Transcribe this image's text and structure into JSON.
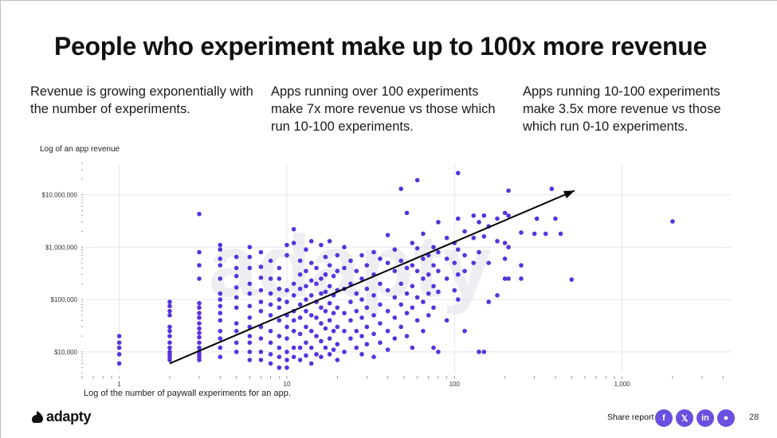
{
  "title": "People who experiment make up to 100x more revenue",
  "columns": [
    "Revenue is growing exponentially with the number of experiments.",
    "Apps running over 100 experiments make 7x more revenue vs those which run 10-100 experiments.",
    "Apps running 10-100 experiments make 3.5x more revenue vs those which run 0-10 experiments."
  ],
  "watermark": "adapty",
  "footer": {
    "brand": "adapty",
    "share_label": "Share report",
    "page_number": "28",
    "social_icons": [
      {
        "name": "facebook-icon",
        "glyph": "f"
      },
      {
        "name": "x-icon",
        "glyph": "𝕏"
      },
      {
        "name": "linkedin-icon",
        "glyph": "in"
      },
      {
        "name": "reddit-icon",
        "glyph": "●"
      }
    ]
  },
  "colors": {
    "points": "#5533dd",
    "arrow": "#000000",
    "grid": "#e6e4ef",
    "brand": "#6a4fe0"
  },
  "chart_data": {
    "type": "scatter",
    "title": "",
    "xlabel": "Log of the number of paywall experiments for an app.",
    "ylabel": "Log of an app revenue",
    "x_scale": "log",
    "y_scale": "log",
    "xlim": [
      0.6,
      4500
    ],
    "ylim": [
      4000,
      40000000
    ],
    "x_ticks": [
      {
        "value": 1,
        "label": "1"
      },
      {
        "value": 10,
        "label": "10"
      },
      {
        "value": 100,
        "label": "100"
      },
      {
        "value": 1000,
        "label": "1,000"
      }
    ],
    "y_ticks": [
      {
        "value": 10000,
        "label": "$10,000"
      },
      {
        "value": 100000,
        "label": "$100,000"
      },
      {
        "value": 1000000,
        "label": "$1,000,000"
      },
      {
        "value": 10000000,
        "label": "$10,000,000"
      }
    ],
    "trend_arrow": {
      "from": [
        2,
        6000
      ],
      "to": [
        520,
        12000000
      ]
    },
    "points": [
      [
        1,
        20000
      ],
      [
        1,
        15000
      ],
      [
        1,
        12000
      ],
      [
        1,
        9000
      ],
      [
        1,
        6000
      ],
      [
        2,
        90000
      ],
      [
        2,
        75000
      ],
      [
        2,
        60000
      ],
      [
        2,
        50000
      ],
      [
        2,
        30000
      ],
      [
        2,
        25000
      ],
      [
        2,
        20000
      ],
      [
        2,
        15000
      ],
      [
        2,
        12000
      ],
      [
        2,
        10000
      ],
      [
        2,
        9000
      ],
      [
        2,
        8000
      ],
      [
        2,
        7000
      ],
      [
        3,
        4300000
      ],
      [
        3,
        800000
      ],
      [
        3,
        450000
      ],
      [
        3,
        250000
      ],
      [
        3,
        85000
      ],
      [
        3,
        70000
      ],
      [
        3,
        55000
      ],
      [
        3,
        45000
      ],
      [
        3,
        35000
      ],
      [
        3,
        28000
      ],
      [
        3,
        23000
      ],
      [
        3,
        19000
      ],
      [
        3,
        15000
      ],
      [
        3,
        12000
      ],
      [
        3,
        10000
      ],
      [
        3,
        9000
      ],
      [
        3,
        8000
      ],
      [
        3,
        7000
      ],
      [
        4,
        1100000
      ],
      [
        4,
        900000
      ],
      [
        4,
        600000
      ],
      [
        4,
        450000
      ],
      [
        4,
        250000
      ],
      [
        4,
        130000
      ],
      [
        4,
        100000
      ],
      [
        4,
        75000
      ],
      [
        4,
        55000
      ],
      [
        4,
        40000
      ],
      [
        4,
        25000
      ],
      [
        4,
        18000
      ],
      [
        4,
        12000
      ],
      [
        4,
        8000
      ],
      [
        5,
        650000
      ],
      [
        5,
        400000
      ],
      [
        5,
        280000
      ],
      [
        5,
        170000
      ],
      [
        5,
        110000
      ],
      [
        5,
        70000
      ],
      [
        5,
        35000
      ],
      [
        5,
        25000
      ],
      [
        5,
        15000
      ],
      [
        5,
        10000
      ],
      [
        6,
        1000000
      ],
      [
        6,
        650000
      ],
      [
        6,
        400000
      ],
      [
        6,
        200000
      ],
      [
        6,
        130000
      ],
      [
        6,
        75000
      ],
      [
        6,
        45000
      ],
      [
        6,
        30000
      ],
      [
        6,
        20000
      ],
      [
        6,
        15000
      ],
      [
        6,
        10000
      ],
      [
        6,
        7000
      ],
      [
        7,
        800000
      ],
      [
        7,
        420000
      ],
      [
        7,
        260000
      ],
      [
        7,
        150000
      ],
      [
        7,
        90000
      ],
      [
        7,
        60000
      ],
      [
        7,
        30000
      ],
      [
        7,
        18000
      ],
      [
        7,
        10000
      ],
      [
        7,
        7000
      ],
      [
        8,
        550000
      ],
      [
        8,
        250000
      ],
      [
        8,
        130000
      ],
      [
        8,
        80000
      ],
      [
        8,
        50000
      ],
      [
        8,
        25000
      ],
      [
        8,
        15000
      ],
      [
        8,
        9000
      ],
      [
        8,
        6000
      ],
      [
        9,
        400000
      ],
      [
        9,
        250000
      ],
      [
        9,
        160000
      ],
      [
        9,
        100000
      ],
      [
        9,
        70000
      ],
      [
        9,
        40000
      ],
      [
        9,
        20000
      ],
      [
        9,
        12000
      ],
      [
        9,
        8000
      ],
      [
        9,
        5000
      ],
      [
        10,
        1100000
      ],
      [
        10,
        700000
      ],
      [
        10,
        150000
      ],
      [
        10,
        90000
      ],
      [
        10,
        50000
      ],
      [
        10,
        30000
      ],
      [
        10,
        18000
      ],
      [
        10,
        10000
      ],
      [
        10,
        7000
      ],
      [
        10,
        5000
      ],
      [
        11,
        2200000
      ],
      [
        11,
        1200000
      ],
      [
        11,
        200000
      ],
      [
        11,
        120000
      ],
      [
        11,
        60000
      ],
      [
        11,
        40000
      ],
      [
        11,
        25000
      ],
      [
        11,
        12000
      ],
      [
        11,
        8000
      ],
      [
        12,
        550000
      ],
      [
        12,
        300000
      ],
      [
        12,
        160000
      ],
      [
        12,
        80000
      ],
      [
        12,
        45000
      ],
      [
        12,
        22000
      ],
      [
        12,
        12000
      ],
      [
        12,
        7000
      ],
      [
        13,
        900000
      ],
      [
        13,
        350000
      ],
      [
        13,
        180000
      ],
      [
        13,
        100000
      ],
      [
        13,
        60000
      ],
      [
        13,
        30000
      ],
      [
        13,
        15000
      ],
      [
        13,
        8500
      ],
      [
        14,
        1300000
      ],
      [
        14,
        500000
      ],
      [
        14,
        230000
      ],
      [
        14,
        120000
      ],
      [
        14,
        50000
      ],
      [
        14,
        25000
      ],
      [
        14,
        12000
      ],
      [
        14,
        6000
      ],
      [
        15,
        400000
      ],
      [
        15,
        200000
      ],
      [
        15,
        90000
      ],
      [
        15,
        45000
      ],
      [
        15,
        20000
      ],
      [
        15,
        9000
      ],
      [
        16,
        1100000
      ],
      [
        16,
        250000
      ],
      [
        16,
        130000
      ],
      [
        16,
        70000
      ],
      [
        16,
        35000
      ],
      [
        16,
        16000
      ],
      [
        16,
        8000
      ],
      [
        17,
        650000
      ],
      [
        17,
        300000
      ],
      [
        17,
        140000
      ],
      [
        17,
        60000
      ],
      [
        17,
        28000
      ],
      [
        17,
        12000
      ],
      [
        18,
        1300000
      ],
      [
        18,
        450000
      ],
      [
        18,
        180000
      ],
      [
        18,
        85000
      ],
      [
        18,
        40000
      ],
      [
        18,
        18000
      ],
      [
        18,
        9000
      ],
      [
        19,
        280000
      ],
      [
        19,
        120000
      ],
      [
        19,
        55000
      ],
      [
        19,
        25000
      ],
      [
        19,
        11000
      ],
      [
        20,
        700000
      ],
      [
        20,
        350000
      ],
      [
        20,
        150000
      ],
      [
        20,
        70000
      ],
      [
        20,
        30000
      ],
      [
        20,
        14000
      ],
      [
        20,
        7000
      ],
      [
        22,
        1000000
      ],
      [
        22,
        400000
      ],
      [
        22,
        160000
      ],
      [
        22,
        55000
      ],
      [
        22,
        25000
      ],
      [
        22,
        10000
      ],
      [
        24,
        550000
      ],
      [
        24,
        200000
      ],
      [
        24,
        90000
      ],
      [
        24,
        40000
      ],
      [
        24,
        18000
      ],
      [
        26,
        350000
      ],
      [
        26,
        130000
      ],
      [
        26,
        60000
      ],
      [
        26,
        25000
      ],
      [
        26,
        12000
      ],
      [
        28,
        700000
      ],
      [
        28,
        250000
      ],
      [
        28,
        100000
      ],
      [
        28,
        45000
      ],
      [
        28,
        20000
      ],
      [
        28,
        9000
      ],
      [
        30,
        450000
      ],
      [
        30,
        160000
      ],
      [
        30,
        70000
      ],
      [
        30,
        30000
      ],
      [
        30,
        14000
      ],
      [
        33,
        800000
      ],
      [
        33,
        300000
      ],
      [
        33,
        120000
      ],
      [
        33,
        50000
      ],
      [
        33,
        22000
      ],
      [
        33,
        8000
      ],
      [
        36,
        600000
      ],
      [
        36,
        200000
      ],
      [
        36,
        80000
      ],
      [
        36,
        35000
      ],
      [
        36,
        15000
      ],
      [
        40,
        1700000
      ],
      [
        40,
        500000
      ],
      [
        40,
        150000
      ],
      [
        40,
        60000
      ],
      [
        40,
        25000
      ],
      [
        40,
        11000
      ],
      [
        44,
        900000
      ],
      [
        44,
        350000
      ],
      [
        44,
        110000
      ],
      [
        44,
        45000
      ],
      [
        44,
        18000
      ],
      [
        48,
        13000000
      ],
      [
        48,
        550000
      ],
      [
        48,
        200000
      ],
      [
        48,
        80000
      ],
      [
        48,
        30000
      ],
      [
        52,
        4500000
      ],
      [
        52,
        400000
      ],
      [
        52,
        130000
      ],
      [
        52,
        55000
      ],
      [
        52,
        20000
      ],
      [
        56,
        1200000
      ],
      [
        56,
        450000
      ],
      [
        56,
        180000
      ],
      [
        56,
        70000
      ],
      [
        56,
        12000
      ],
      [
        60,
        19000000
      ],
      [
        60,
        950000
      ],
      [
        60,
        350000
      ],
      [
        60,
        110000
      ],
      [
        60,
        40000
      ],
      [
        65,
        1800000
      ],
      [
        65,
        600000
      ],
      [
        65,
        250000
      ],
      [
        65,
        90000
      ],
      [
        65,
        25000
      ],
      [
        70,
        700000
      ],
      [
        70,
        300000
      ],
      [
        70,
        130000
      ],
      [
        70,
        50000
      ],
      [
        75,
        1000000
      ],
      [
        75,
        450000
      ],
      [
        75,
        180000
      ],
      [
        75,
        70000
      ],
      [
        75,
        12000
      ],
      [
        80,
        3000000
      ],
      [
        80,
        800000
      ],
      [
        80,
        350000
      ],
      [
        80,
        140000
      ],
      [
        80,
        10000
      ],
      [
        90,
        1500000
      ],
      [
        90,
        600000
      ],
      [
        90,
        250000
      ],
      [
        90,
        40000
      ],
      [
        100,
        1200000
      ],
      [
        100,
        500000
      ],
      [
        100,
        150000
      ],
      [
        105,
        26000000
      ],
      [
        105,
        3500000
      ],
      [
        105,
        900000
      ],
      [
        105,
        300000
      ],
      [
        105,
        100000
      ],
      [
        115,
        2000000
      ],
      [
        115,
        700000
      ],
      [
        115,
        350000
      ],
      [
        115,
        25000
      ],
      [
        130,
        4000000
      ],
      [
        130,
        1500000
      ],
      [
        130,
        500000
      ],
      [
        140,
        3000000
      ],
      [
        140,
        800000
      ],
      [
        140,
        10000
      ],
      [
        150,
        4000000
      ],
      [
        150,
        1600000
      ],
      [
        150,
        10000
      ],
      [
        160,
        2500000
      ],
      [
        160,
        500000
      ],
      [
        160,
        90000
      ],
      [
        180,
        3500000
      ],
      [
        180,
        1300000
      ],
      [
        180,
        120000
      ],
      [
        200,
        4500000
      ],
      [
        200,
        1200000
      ],
      [
        200,
        600000
      ],
      [
        200,
        250000
      ],
      [
        210,
        12000000
      ],
      [
        210,
        4000000
      ],
      [
        210,
        1000000
      ],
      [
        210,
        250000
      ],
      [
        250,
        1900000
      ],
      [
        250,
        450000
      ],
      [
        250,
        250000
      ],
      [
        300,
        1800000
      ],
      [
        310,
        3500000
      ],
      [
        350,
        1800000
      ],
      [
        380,
        13000000
      ],
      [
        400,
        3500000
      ],
      [
        430,
        1800000
      ],
      [
        500,
        240000
      ],
      [
        2000,
        3100000
      ]
    ]
  }
}
